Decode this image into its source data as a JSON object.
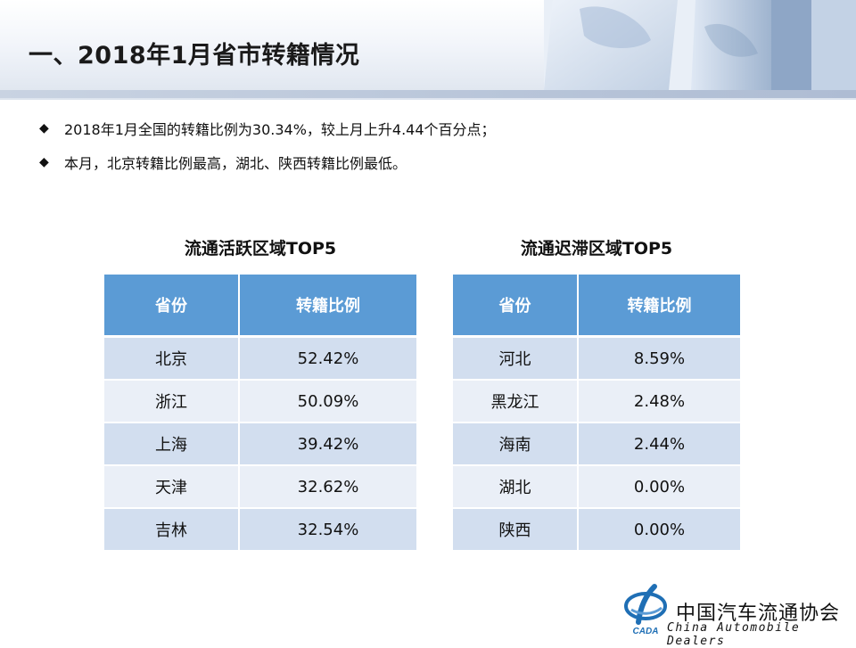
{
  "page_title": "一、2018年1月省市转籍情况",
  "bullets": [
    "2018年1月全国的转籍比例为30.34%，较上月上升4.44个百分点；",
    "本月，北京转籍比例最高，湖北、陕西转籍比例最低。"
  ],
  "bullet_symbol": "◆",
  "active_table": {
    "title": "流通活跃区域TOP5",
    "headers": [
      "省份",
      "转籍比例"
    ],
    "rows": [
      [
        "北京",
        "52.42%"
      ],
      [
        "浙江",
        "50.09%"
      ],
      [
        "上海",
        "39.42%"
      ],
      [
        "天津",
        "32.62%"
      ],
      [
        "吉林",
        "32.54%"
      ]
    ]
  },
  "stagnant_table": {
    "title": "流通迟滞区域TOP5",
    "headers": [
      "省份",
      "转籍比例"
    ],
    "rows": [
      [
        "河北",
        "8.59%"
      ],
      [
        "黑龙江",
        "2.48%"
      ],
      [
        "海南",
        "2.44%"
      ],
      [
        "湖北",
        "0.00%"
      ],
      [
        "陕西",
        "0.00%"
      ]
    ]
  },
  "footer": {
    "org_cn": "中国汽车流通协会",
    "org_en": "China  Automobile Dealers",
    "logo_text": "CADA"
  },
  "colors": {
    "header_blue": "#5b9bd5",
    "row_dark": "#d2deef",
    "row_light": "#eaeff7",
    "logo_blue": "#1f6fb5"
  }
}
